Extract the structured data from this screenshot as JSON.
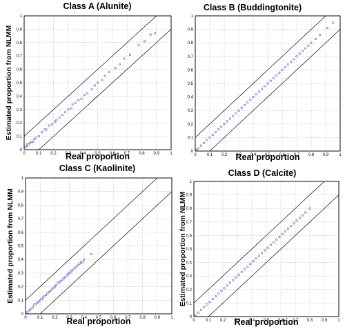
{
  "chart_data": [
    {
      "type": "scatter",
      "title": "Class A (Alunite)",
      "xlabel": "Real proportion",
      "ylabel": "Estimated proportion from NLMM",
      "xlim": [
        0,
        1
      ],
      "ylim": [
        0,
        1
      ],
      "grid": true,
      "tick_labels": [
        "0",
        "0.1",
        "0.2",
        "0.3",
        "0.4",
        "0.5",
        "0.6",
        "0.7",
        "0.8",
        "0.9",
        "1"
      ],
      "bounds": [
        {
          "name": "upper",
          "offset": 0.1
        },
        {
          "name": "lower",
          "offset": -0.1
        }
      ],
      "point_color": "#5b63c8",
      "x_range_points": [
        0.0,
        0.9
      ],
      "points": [
        [
          0.01,
          0.02
        ],
        [
          0.02,
          0.03
        ],
        [
          0.02,
          0.04
        ],
        [
          0.03,
          0.04
        ],
        [
          0.04,
          0.05
        ],
        [
          0.05,
          0.06
        ],
        [
          0.06,
          0.06
        ],
        [
          0.07,
          0.08
        ],
        [
          0.08,
          0.09
        ],
        [
          0.1,
          0.1
        ],
        [
          0.12,
          0.13
        ],
        [
          0.14,
          0.15
        ],
        [
          0.15,
          0.15
        ],
        [
          0.17,
          0.18
        ],
        [
          0.19,
          0.19
        ],
        [
          0.21,
          0.21
        ],
        [
          0.22,
          0.22
        ],
        [
          0.24,
          0.24
        ],
        [
          0.26,
          0.26
        ],
        [
          0.28,
          0.28
        ],
        [
          0.3,
          0.3
        ],
        [
          0.32,
          0.31
        ],
        [
          0.33,
          0.34
        ],
        [
          0.35,
          0.35
        ],
        [
          0.37,
          0.37
        ],
        [
          0.39,
          0.38
        ],
        [
          0.41,
          0.41
        ],
        [
          0.43,
          0.42
        ],
        [
          0.46,
          0.45
        ],
        [
          0.48,
          0.48
        ],
        [
          0.5,
          0.5
        ],
        [
          0.53,
          0.52
        ],
        [
          0.55,
          0.55
        ],
        [
          0.58,
          0.58
        ],
        [
          0.62,
          0.61
        ],
        [
          0.65,
          0.64
        ],
        [
          0.68,
          0.68
        ],
        [
          0.72,
          0.71
        ],
        [
          0.78,
          0.78
        ],
        [
          0.82,
          0.81
        ],
        [
          0.86,
          0.86
        ],
        [
          0.89,
          0.87
        ]
      ]
    },
    {
      "type": "scatter",
      "title": "Class B (Buddingtonite)",
      "xlabel": "Real proportion",
      "ylabel": "",
      "xlim": [
        0,
        1
      ],
      "ylim": [
        0,
        1
      ],
      "grid": true,
      "tick_labels": [
        "0",
        "0.1",
        "0.2",
        "0.3",
        "0.4",
        "0.5",
        "0.6",
        "0.7",
        "0.8",
        "0.9",
        "1"
      ],
      "bounds": [
        {
          "name": "upper",
          "offset": 0.1
        },
        {
          "name": "lower",
          "offset": -0.1
        }
      ],
      "point_color": "#5b63c8",
      "x_range_points": [
        0.0,
        0.95
      ],
      "points": [
        [
          0.01,
          0.01
        ],
        [
          0.02,
          0.02
        ],
        [
          0.04,
          0.04
        ],
        [
          0.06,
          0.06
        ],
        [
          0.08,
          0.08
        ],
        [
          0.1,
          0.1
        ],
        [
          0.12,
          0.12
        ],
        [
          0.14,
          0.14
        ],
        [
          0.16,
          0.16
        ],
        [
          0.18,
          0.18
        ],
        [
          0.2,
          0.2
        ],
        [
          0.22,
          0.22
        ],
        [
          0.24,
          0.24
        ],
        [
          0.26,
          0.26
        ],
        [
          0.28,
          0.28
        ],
        [
          0.3,
          0.3
        ],
        [
          0.32,
          0.32
        ],
        [
          0.34,
          0.34
        ],
        [
          0.36,
          0.36
        ],
        [
          0.38,
          0.38
        ],
        [
          0.4,
          0.4
        ],
        [
          0.42,
          0.42
        ],
        [
          0.44,
          0.44
        ],
        [
          0.46,
          0.46
        ],
        [
          0.48,
          0.48
        ],
        [
          0.5,
          0.5
        ],
        [
          0.52,
          0.52
        ],
        [
          0.54,
          0.54
        ],
        [
          0.56,
          0.56
        ],
        [
          0.58,
          0.58
        ],
        [
          0.6,
          0.6
        ],
        [
          0.62,
          0.62
        ],
        [
          0.64,
          0.64
        ],
        [
          0.66,
          0.66
        ],
        [
          0.68,
          0.68
        ],
        [
          0.7,
          0.7
        ],
        [
          0.72,
          0.72
        ],
        [
          0.74,
          0.74
        ],
        [
          0.76,
          0.76
        ],
        [
          0.78,
          0.78
        ],
        [
          0.8,
          0.8
        ],
        [
          0.83,
          0.83
        ],
        [
          0.86,
          0.86
        ],
        [
          0.91,
          0.91
        ],
        [
          0.95,
          0.95
        ]
      ]
    },
    {
      "type": "scatter",
      "title": "Class C (Kaolinite)",
      "xlabel": "Real proportion",
      "ylabel": "Estimated proportion from NLMM",
      "xlim": [
        0,
        1
      ],
      "ylim": [
        0,
        1
      ],
      "grid": true,
      "tick_labels": [
        "0",
        "0.1",
        "0.2",
        "0.3",
        "0.4",
        "0.5",
        "0.6",
        "0.7",
        "0.8",
        "0.9",
        "1"
      ],
      "bounds": [
        {
          "name": "upper",
          "offset": 0.1
        },
        {
          "name": "lower",
          "offset": -0.1
        }
      ],
      "point_color": "#5b63c8",
      "x_range_points": [
        0.0,
        0.45
      ],
      "points": [
        [
          0.01,
          0.01
        ],
        [
          0.02,
          0.02
        ],
        [
          0.03,
          0.03
        ],
        [
          0.04,
          0.04
        ],
        [
          0.05,
          0.05
        ],
        [
          0.06,
          0.07
        ],
        [
          0.07,
          0.07
        ],
        [
          0.08,
          0.08
        ],
        [
          0.09,
          0.09
        ],
        [
          0.1,
          0.1
        ],
        [
          0.11,
          0.11
        ],
        [
          0.12,
          0.12
        ],
        [
          0.13,
          0.13
        ],
        [
          0.14,
          0.14
        ],
        [
          0.15,
          0.15
        ],
        [
          0.16,
          0.16
        ],
        [
          0.17,
          0.17
        ],
        [
          0.18,
          0.18
        ],
        [
          0.19,
          0.19
        ],
        [
          0.2,
          0.2
        ],
        [
          0.21,
          0.21
        ],
        [
          0.22,
          0.23
        ],
        [
          0.23,
          0.23
        ],
        [
          0.24,
          0.24
        ],
        [
          0.25,
          0.25
        ],
        [
          0.26,
          0.26
        ],
        [
          0.27,
          0.27
        ],
        [
          0.28,
          0.28
        ],
        [
          0.29,
          0.29
        ],
        [
          0.3,
          0.3
        ],
        [
          0.31,
          0.31
        ],
        [
          0.32,
          0.32
        ],
        [
          0.33,
          0.33
        ],
        [
          0.34,
          0.34
        ],
        [
          0.35,
          0.35
        ],
        [
          0.36,
          0.36
        ],
        [
          0.37,
          0.37
        ],
        [
          0.38,
          0.38
        ],
        [
          0.39,
          0.38
        ],
        [
          0.4,
          0.4
        ],
        [
          0.45,
          0.44
        ]
      ]
    },
    {
      "type": "scatter",
      "title": "Class D (Calcite)",
      "xlabel": "Real proportion",
      "ylabel": "Estimated proportion from NLMM",
      "xlim": [
        0,
        1
      ],
      "ylim": [
        0,
        1
      ],
      "grid": true,
      "tick_labels": [
        "0",
        "0.1",
        "0.2",
        "0.3",
        "0.4",
        "0.5",
        "0.6",
        "0.7",
        "0.8",
        "0.9",
        "1"
      ],
      "bounds": [
        {
          "name": "upper",
          "offset": 0.1
        },
        {
          "name": "lower",
          "offset": -0.1
        }
      ],
      "point_color": "#5b63c8",
      "x_range_points": [
        0.0,
        0.8
      ],
      "points": [
        [
          0.01,
          0.01
        ],
        [
          0.03,
          0.03
        ],
        [
          0.05,
          0.05
        ],
        [
          0.07,
          0.07
        ],
        [
          0.09,
          0.09
        ],
        [
          0.11,
          0.11
        ],
        [
          0.13,
          0.13
        ],
        [
          0.15,
          0.15
        ],
        [
          0.17,
          0.17
        ],
        [
          0.19,
          0.19
        ],
        [
          0.21,
          0.21
        ],
        [
          0.23,
          0.23
        ],
        [
          0.25,
          0.25
        ],
        [
          0.27,
          0.27
        ],
        [
          0.29,
          0.29
        ],
        [
          0.31,
          0.31
        ],
        [
          0.33,
          0.33
        ],
        [
          0.35,
          0.35
        ],
        [
          0.37,
          0.37
        ],
        [
          0.39,
          0.39
        ],
        [
          0.41,
          0.41
        ],
        [
          0.43,
          0.43
        ],
        [
          0.45,
          0.45
        ],
        [
          0.47,
          0.47
        ],
        [
          0.49,
          0.49
        ],
        [
          0.51,
          0.51
        ],
        [
          0.53,
          0.53
        ],
        [
          0.55,
          0.55
        ],
        [
          0.57,
          0.57
        ],
        [
          0.59,
          0.59
        ],
        [
          0.61,
          0.61
        ],
        [
          0.63,
          0.63
        ],
        [
          0.65,
          0.65
        ],
        [
          0.67,
          0.67
        ],
        [
          0.69,
          0.69
        ],
        [
          0.71,
          0.71
        ],
        [
          0.73,
          0.73
        ],
        [
          0.75,
          0.75
        ],
        [
          0.77,
          0.77
        ],
        [
          0.8,
          0.8
        ]
      ]
    }
  ]
}
